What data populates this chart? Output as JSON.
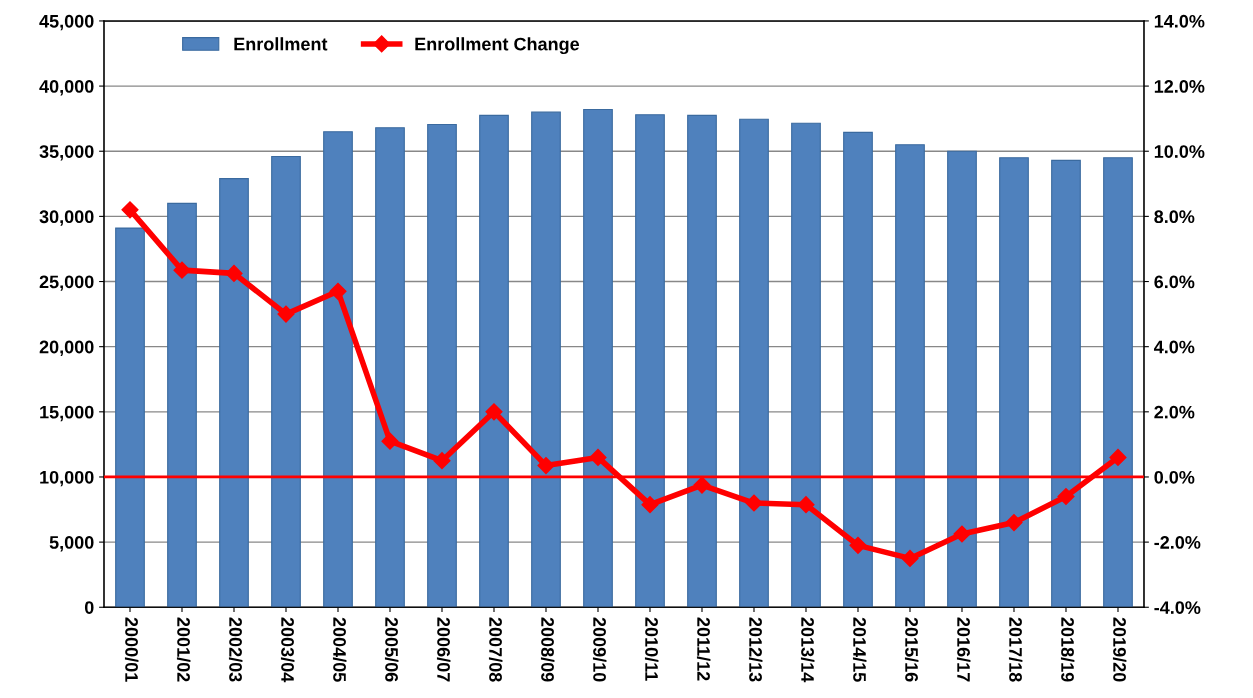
{
  "chart_data": {
    "type": "bar",
    "categories": [
      "2000/01",
      "2001/02",
      "2002/03",
      "2003/04",
      "2004/05",
      "2005/06",
      "2006/07",
      "2007/08",
      "2008/09",
      "2009/10",
      "2010/11",
      "2011/12",
      "2012/13",
      "2013/14",
      "2014/15",
      "2015/16",
      "2016/17",
      "2017/18",
      "2018/19",
      "2019/20"
    ],
    "series": [
      {
        "name": "Enrollment",
        "color": "#4f81bd",
        "values": [
          29100,
          31000,
          32900,
          34600,
          36500,
          36800,
          37050,
          37750,
          38000,
          38200,
          37800,
          37750,
          37450,
          37150,
          36450,
          35500,
          35000,
          34500,
          34300,
          34500
        ]
      },
      {
        "name": "Enrollment Change",
        "type": "line",
        "axis": "y2",
        "color": "#ff0000",
        "marker": "diamond",
        "values": [
          8.2,
          6.35,
          6.25,
          5.0,
          5.7,
          1.1,
          0.5,
          2.0,
          0.35,
          0.6,
          -0.85,
          -0.25,
          -0.8,
          -0.85,
          -2.1,
          -2.5,
          -1.75,
          -1.4,
          -0.6,
          0.6
        ]
      }
    ],
    "ylim": [
      0,
      45000
    ],
    "yticks": [
      {
        "value": 0,
        "label": "0"
      },
      {
        "value": 5000,
        "label": "5,000"
      },
      {
        "value": 10000,
        "label": "10,000"
      },
      {
        "value": 15000,
        "label": "15,000"
      },
      {
        "value": 20000,
        "label": "20,000"
      },
      {
        "value": 25000,
        "label": "25,000"
      },
      {
        "value": 30000,
        "label": "30,000"
      },
      {
        "value": 35000,
        "label": "35,000"
      },
      {
        "value": 40000,
        "label": "40,000"
      },
      {
        "value": 45000,
        "label": "45,000"
      }
    ],
    "y2lim": [
      -4,
      14
    ],
    "y2ticks": [
      {
        "value": -4,
        "label": "-4.0%"
      },
      {
        "value": -2,
        "label": "-2.0%"
      },
      {
        "value": 0,
        "label": "0.0%"
      },
      {
        "value": 2,
        "label": "2.0%"
      },
      {
        "value": 4,
        "label": "4.0%"
      },
      {
        "value": 6,
        "label": "6.0%"
      },
      {
        "value": 8,
        "label": "8.0%"
      },
      {
        "value": 10,
        "label": "10.0%"
      },
      {
        "value": 12,
        "label": "12.0%"
      },
      {
        "value": 14,
        "label": "14.0%"
      }
    ],
    "ref_lines": [
      {
        "axis": "y2",
        "value": 0,
        "color": "#ff0000"
      }
    ],
    "grid": "y",
    "legend": "top left"
  }
}
